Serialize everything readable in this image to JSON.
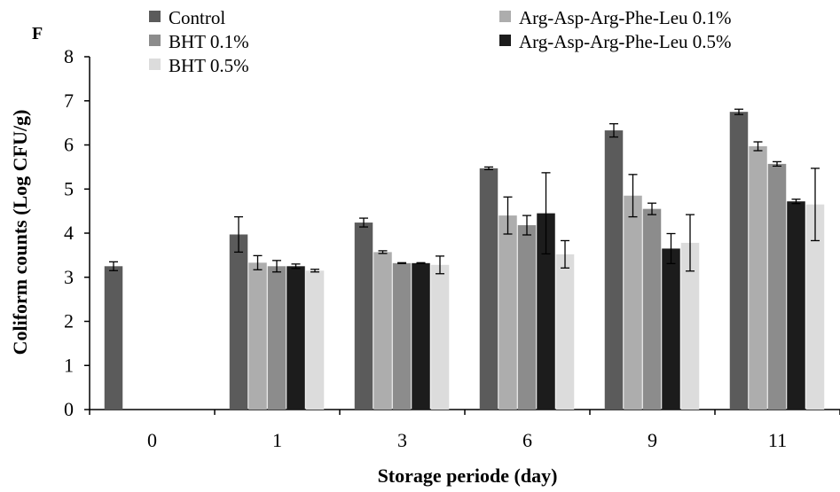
{
  "chart_data": {
    "type": "bar",
    "panel_label": "F",
    "xlabel": "Storage periode (day)",
    "ylabel": "Coliform counts  (Log CFU/g)",
    "ylim": [
      0,
      8
    ],
    "yticks": [
      "0",
      "1",
      "2",
      "3",
      "4",
      "5",
      "6",
      "7",
      "8"
    ],
    "categories": [
      "0",
      "1",
      "3",
      "6",
      "9",
      "11"
    ],
    "grid": false,
    "legend_position": "top",
    "series": [
      {
        "name": "Control",
        "color": "#5b5b5b",
        "values": [
          3.25,
          3.97,
          4.24,
          5.47,
          6.33,
          6.75
        ],
        "errors": [
          0.1,
          0.4,
          0.1,
          0.03,
          0.15,
          0.06
        ]
      },
      {
        "name": "Arg-Asp-Arg-Phe-Leu  0.1%",
        "color": "#adadad",
        "values": [
          null,
          3.33,
          3.57,
          4.4,
          4.85,
          5.97
        ],
        "errors": [
          null,
          0.16,
          0.03,
          0.42,
          0.48,
          0.1
        ]
      },
      {
        "name": "BHT 0.1%",
        "color": "#8c8c8c",
        "values": [
          null,
          3.25,
          3.32,
          4.18,
          4.55,
          5.57
        ],
        "errors": [
          null,
          0.13,
          0.01,
          0.22,
          0.13,
          0.05
        ]
      },
      {
        "name": "Arg-Asp-Arg-Phe-Leu  0.5%",
        "color": "#1c1c1c",
        "values": [
          null,
          3.25,
          3.32,
          4.45,
          3.65,
          4.72
        ],
        "errors": [
          null,
          0.05,
          0.01,
          0.92,
          0.34,
          0.05
        ]
      },
      {
        "name": "BHT 0.5%",
        "color": "#dcdcdc",
        "values": [
          null,
          3.15,
          3.28,
          3.52,
          3.78,
          4.65
        ],
        "errors": [
          null,
          0.03,
          0.2,
          0.31,
          0.64,
          0.82
        ]
      }
    ]
  }
}
